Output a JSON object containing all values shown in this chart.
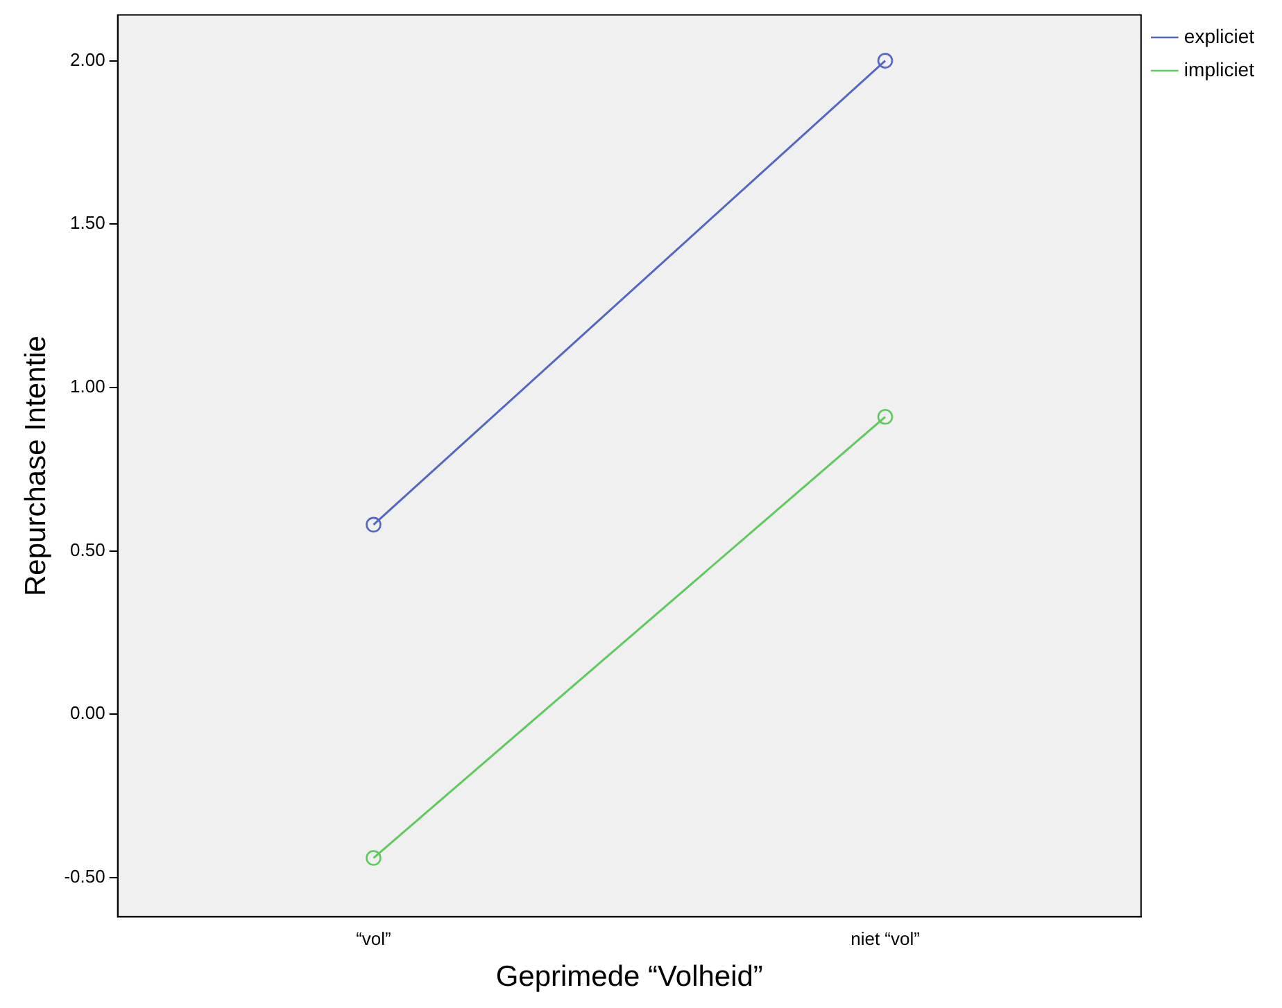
{
  "chart_data": {
    "type": "line",
    "xlabel": "Geprimede “Volheid”",
    "ylabel": "Repurchase Intentie",
    "categories": [
      "“vol”",
      "niet “vol”"
    ],
    "series": [
      {
        "name": "expliciet",
        "color": "#5266c2",
        "values": [
          0.58,
          2.0
        ]
      },
      {
        "name": "impliciet",
        "color": "#5ccb5c",
        "values": [
          -0.44,
          0.91
        ]
      }
    ],
    "ylim": [
      -0.62,
      2.14
    ],
    "yticks": [
      {
        "value": -0.5,
        "label": "-0.50"
      },
      {
        "value": 0,
        "label": "0.00"
      },
      {
        "value": 0.5,
        "label": "0.50"
      },
      {
        "value": 1,
        "label": "1.00"
      },
      {
        "value": 1.5,
        "label": "1.50"
      },
      {
        "value": 2,
        "label": "2.00"
      }
    ],
    "grid": false,
    "legend": "top right",
    "marker": "circle",
    "line_style": "solid"
  }
}
